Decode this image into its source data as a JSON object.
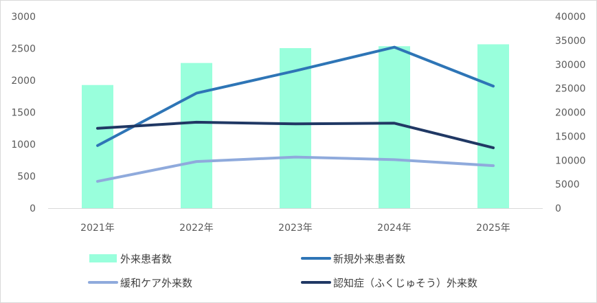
{
  "chart_data": {
    "type": "bar",
    "categories": [
      "2021年",
      "2022年",
      "2023年",
      "2024年",
      "2025年"
    ],
    "left_axis": {
      "ticks": [
        "0",
        "500",
        "1000",
        "1500",
        "2000",
        "2500",
        "3000"
      ],
      "ylim": [
        0,
        3000
      ]
    },
    "right_axis": {
      "ticks": [
        "0",
        "5000",
        "10000",
        "15000",
        "20000",
        "25000",
        "30000",
        "35000",
        "40000"
      ],
      "ylim": [
        0,
        40000
      ]
    },
    "bar_series": {
      "name": "外来患者数",
      "axis": "right",
      "color": "#99ffdc",
      "values": [
        25700,
        30300,
        33400,
        33800,
        34200
      ]
    },
    "line_series": [
      {
        "name": "新規外来患者数",
        "axis": "left",
        "color": "#2e75b6",
        "values": [
          980,
          1800,
          2150,
          2520,
          1910
        ]
      },
      {
        "name": "緩和ケア外来数",
        "axis": "left",
        "color": "#8faadc",
        "values": [
          420,
          730,
          800,
          760,
          665
        ]
      },
      {
        "name": "認知症（ふくじゅそう）外来数",
        "axis": "left",
        "color": "#203864",
        "values": [
          1250,
          1345,
          1320,
          1330,
          945
        ]
      }
    ],
    "grid": false,
    "legend_position": "bottom"
  }
}
